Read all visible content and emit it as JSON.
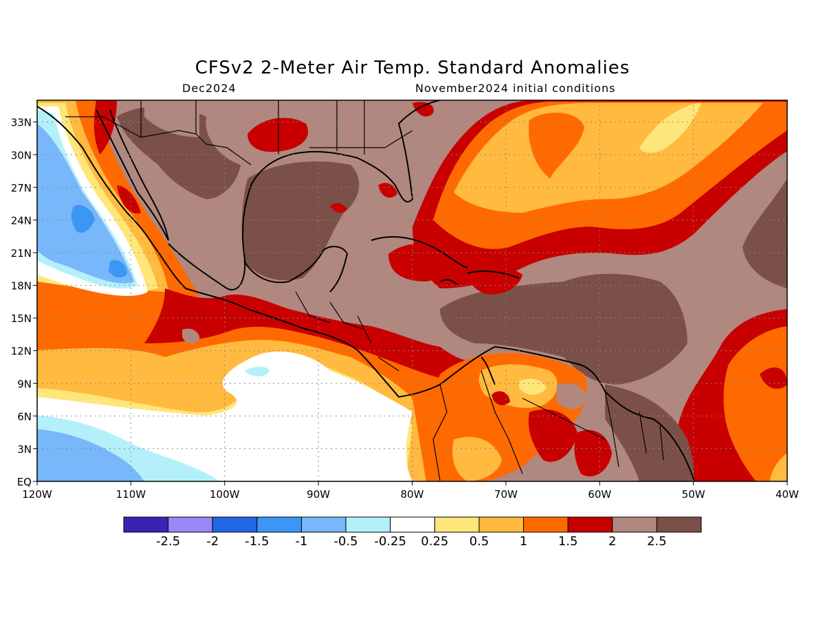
{
  "title": "CFSv2 2-Meter Air Temp. Standard Anomalies",
  "valid_month": "Dec2024",
  "init_label": "November2024 initial conditions",
  "map": {
    "lat_labels": [
      "EQ",
      "3N",
      "6N",
      "9N",
      "12N",
      "15N",
      "18N",
      "21N",
      "24N",
      "27N",
      "30N",
      "33N"
    ],
    "lon_labels": [
      "120W",
      "110W",
      "100W",
      "90W",
      "80W",
      "70W",
      "60W",
      "50W",
      "40W"
    ],
    "extent": {
      "lon_min": -120,
      "lon_max": -40,
      "lat_min": 0,
      "lat_max": 35
    },
    "gridlines": "dotted",
    "background_class_color": "#b08880"
  },
  "colorbar": {
    "colors": [
      "#3c22b4",
      "#9a88f6",
      "#2168e4",
      "#3c96f6",
      "#78b7f9",
      "#b4f0fa",
      "#ffffff",
      "#ffe67a",
      "#ffba3f",
      "#ff6a00",
      "#c80000",
      "#b08880",
      "#7a5048"
    ],
    "labels": [
      "-2.5",
      "-2",
      "-1.5",
      "-1",
      "-0.5",
      "-0.25",
      "0.25",
      "0.5",
      "1",
      "1.5",
      "2",
      "2.5"
    ]
  }
}
